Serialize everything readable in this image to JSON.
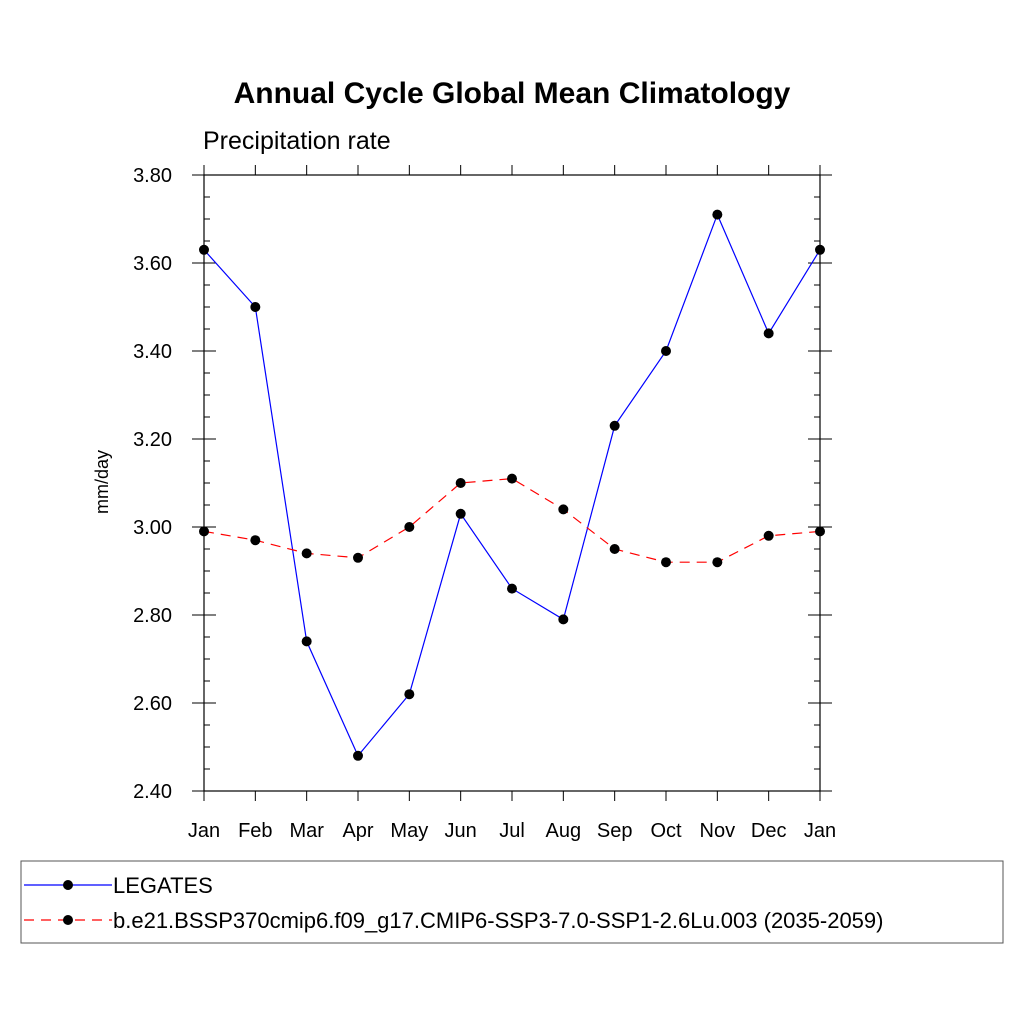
{
  "chart_data": {
    "type": "line",
    "title": "Annual Cycle Global Mean Climatology",
    "subtitle": "Precipitation rate",
    "xlabel": "",
    "ylabel": "mm/day",
    "categories": [
      "Jan",
      "Feb",
      "Mar",
      "Apr",
      "May",
      "Jun",
      "Jul",
      "Aug",
      "Sep",
      "Oct",
      "Nov",
      "Dec",
      "Jan"
    ],
    "ylim": [
      2.4,
      3.8
    ],
    "yticks": [
      "2.40",
      "2.60",
      "2.80",
      "3.00",
      "3.20",
      "3.40",
      "3.60",
      "3.80"
    ],
    "grid": false,
    "legend_position": "bottom",
    "series": [
      {
        "name": "LEGATES",
        "color": "#0000ff",
        "line_style": "solid",
        "marker": "filled-circle",
        "values": [
          3.63,
          3.5,
          2.74,
          2.48,
          2.62,
          3.03,
          2.86,
          2.79,
          3.23,
          3.4,
          3.71,
          3.44,
          3.63
        ]
      },
      {
        "name": "b.e21.BSSP370cmip6.f09_g17.CMIP6-SSP3-7.0-SSP1-2.6Lu.003 (2035-2059)",
        "color": "#ff0000",
        "line_style": "dashed",
        "marker": "filled-circle",
        "values": [
          2.99,
          2.97,
          2.94,
          2.93,
          3.0,
          3.1,
          3.11,
          3.04,
          2.95,
          2.92,
          2.92,
          2.98,
          2.99
        ]
      }
    ]
  }
}
